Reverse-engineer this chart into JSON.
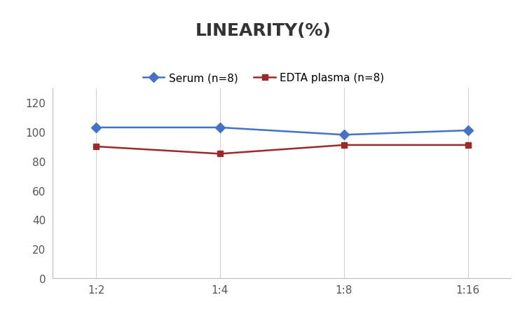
{
  "title": "LINEARITY(%)",
  "x_labels": [
    "1:2",
    "1:4",
    "1:8",
    "1:16"
  ],
  "x_positions": [
    0,
    1,
    2,
    3
  ],
  "serum": {
    "label": "Serum (n=8)",
    "values": [
      103,
      103,
      98,
      101
    ],
    "color": "#4472C4",
    "marker": "D"
  },
  "edta": {
    "label": "EDTA plasma (n=8)",
    "values": [
      90,
      85,
      91,
      91
    ],
    "color": "#9C2A2A",
    "marker": "s"
  },
  "ylim": [
    0,
    130
  ],
  "yticks": [
    0,
    20,
    40,
    60,
    80,
    100,
    120
  ],
  "background_color": "#ffffff",
  "grid_color": "#d0d0d0",
  "title_fontsize": 18,
  "legend_fontsize": 11,
  "tick_fontsize": 11,
  "title_color": "#333333"
}
